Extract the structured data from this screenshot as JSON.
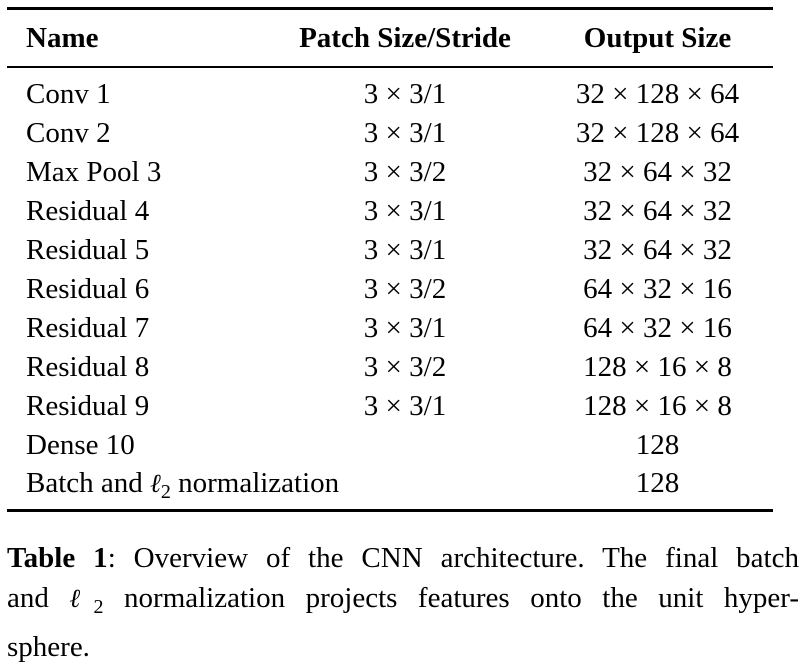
{
  "table": {
    "headers": {
      "name": "Name",
      "patch": "Patch Size/Stride",
      "output": "Output Size"
    },
    "rows": [
      {
        "name": "Conv 1",
        "patch": "3 × 3/1",
        "output": "32 × 128 × 64"
      },
      {
        "name": "Conv 2",
        "patch": "3 × 3/1",
        "output": "32 × 128 × 64"
      },
      {
        "name": "Max Pool 3",
        "patch": "3 × 3/2",
        "output": "32 × 64 × 32"
      },
      {
        "name": "Residual 4",
        "patch": "3 × 3/1",
        "output": "32 × 64 × 32"
      },
      {
        "name": "Residual 5",
        "patch": "3 × 3/1",
        "output": "32 × 64 × 32"
      },
      {
        "name": "Residual 6",
        "patch": "3 × 3/2",
        "output": "64 × 32 × 16"
      },
      {
        "name": "Residual 7",
        "patch": "3 × 3/1",
        "output": "64 × 32 × 16"
      },
      {
        "name": "Residual 8",
        "patch": "3 × 3/2",
        "output": "128 × 16 × 8"
      },
      {
        "name": "Residual 9",
        "patch": "3 × 3/1",
        "output": "128 × 16 × 8"
      },
      {
        "name": "Dense 10",
        "patch": "",
        "output": "128"
      }
    ],
    "last_row": {
      "name_prefix": "Batch and ",
      "ell": "ℓ",
      "ell_sub": "2",
      "name_suffix": " normalization",
      "output": "128"
    }
  },
  "caption": {
    "label": "Table 1",
    "line1_rest": ": Overview of the CNN architecture. The final batch",
    "line2_prefix": "and ",
    "ell": "ℓ",
    "ell_sub": "2",
    "line2_suffix": " normalization projects features onto the unit hyper-",
    "line3": "sphere."
  }
}
